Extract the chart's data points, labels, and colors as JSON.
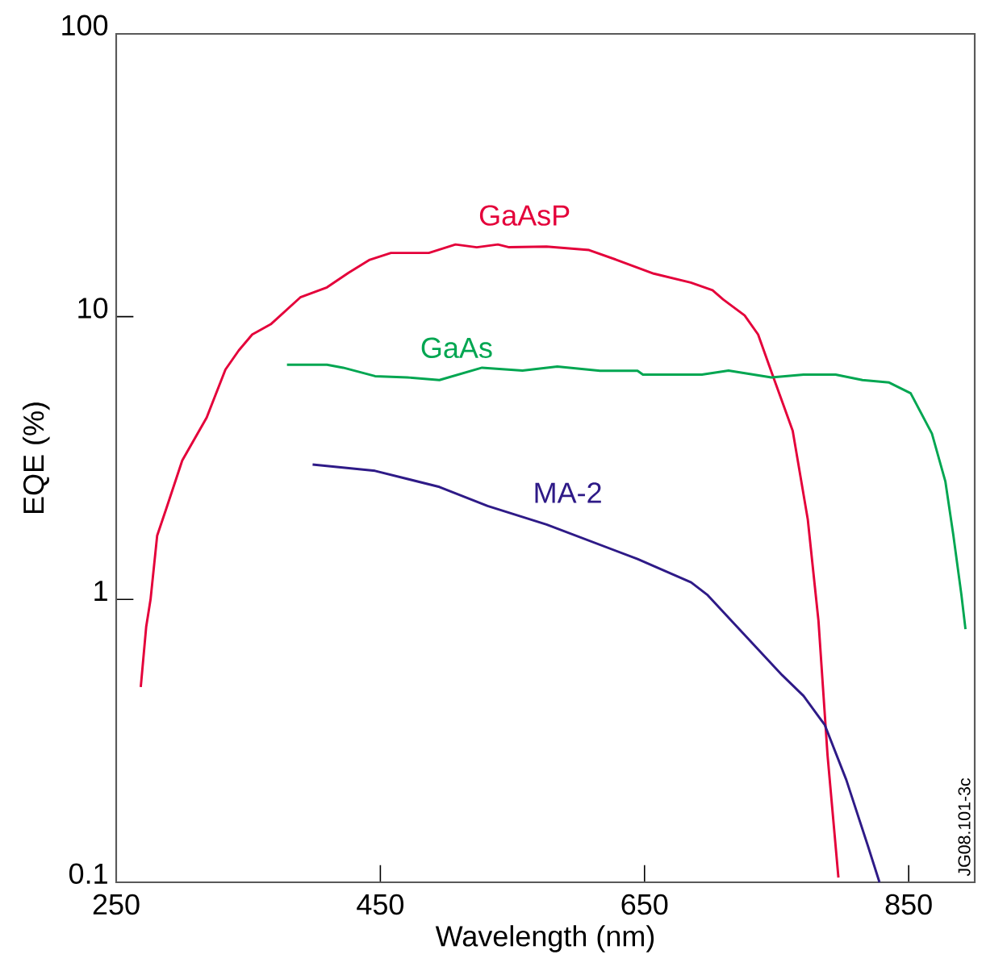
{
  "chart_data": {
    "type": "line",
    "xlabel": "Wavelength (nm)",
    "ylabel": "EQE (%)",
    "log": "y",
    "marker": "none",
    "line_style": "solid",
    "xlim": [
      250,
      900
    ],
    "ylim": [
      0.1,
      100
    ],
    "xticks": [
      250,
      450,
      650,
      850
    ],
    "yticks": [
      0.1,
      1,
      10,
      100
    ],
    "annotations": [
      "JG08.101-3c"
    ],
    "series": [
      {
        "name": "GaAsP",
        "color": "#e4003a",
        "x": [
          268.6,
          272.7,
          276,
          281,
          288,
          300,
          318.5,
          332.7,
          342.8,
          353,
          367,
          389.4,
          409.6,
          425.9,
          442,
          458,
          486.7,
          506.9,
          523,
          539,
          547.5,
          575.8,
          608,
          628.6,
          657,
          685,
          701.5,
          709.6,
          725.8,
          736,
          746,
          762.2,
          773.6,
          781.7,
          788.6,
          796.8
        ],
        "values": [
          0.49,
          0.8,
          1.0,
          1.68,
          2.1,
          3.1,
          4.4,
          6.5,
          7.6,
          8.65,
          9.4,
          11.7,
          12.7,
          14.3,
          15.9,
          16.8,
          16.8,
          18.0,
          17.6,
          18.0,
          17.6,
          17.7,
          17.2,
          15.9,
          14.2,
          13.2,
          12.4,
          11.5,
          10.1,
          8.65,
          6.4,
          3.95,
          1.92,
          0.84,
          0.28,
          0.104
        ]
      },
      {
        "name": "GaAs",
        "color": "#00a651",
        "x": [
          379.3,
          409.6,
          421.8,
          446,
          470.4,
          494.7,
          527,
          557.6,
          584,
          616.3,
          644.7,
          648.8,
          693.4,
          713.6,
          746,
          770.4,
          794.7,
          815,
          835.2,
          851.5,
          867.6,
          877.8,
          883.8,
          889.9,
          893
        ],
        "values": [
          6.76,
          6.76,
          6.6,
          6.16,
          6.1,
          5.97,
          6.6,
          6.45,
          6.66,
          6.44,
          6.44,
          6.24,
          6.24,
          6.45,
          6.1,
          6.24,
          6.24,
          5.97,
          5.85,
          5.36,
          3.86,
          2.61,
          1.69,
          1.04,
          0.785
        ]
      },
      {
        "name": "MA-2",
        "color": "#2e1a87",
        "x": [
          398.7,
          446,
          494.7,
          531.2,
          575.8,
          644.7,
          685.3,
          697.4,
          754.2,
          770.4,
          786.5,
          802.8,
          819,
          827.9
        ],
        "values": [
          3.0,
          2.85,
          2.5,
          2.14,
          1.84,
          1.39,
          1.15,
          1.04,
          0.54,
          0.456,
          0.36,
          0.23,
          0.135,
          0.1
        ]
      }
    ]
  }
}
